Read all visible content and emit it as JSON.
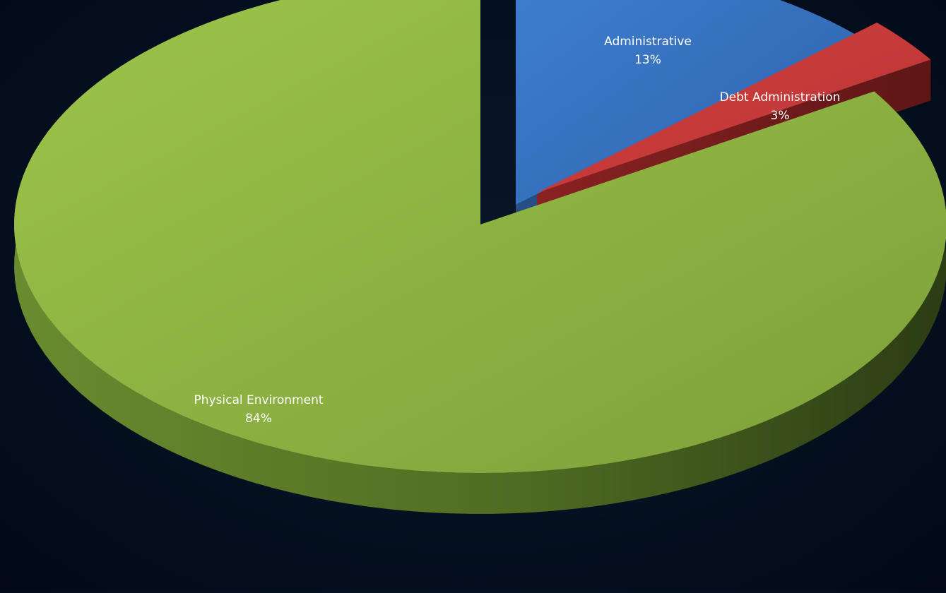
{
  "chart_data": {
    "type": "pie",
    "style": "3d-exploded",
    "legend": "none",
    "slices": [
      {
        "label": "Administrative",
        "value": 13,
        "value_label": "13%",
        "color": "#3b78c9"
      },
      {
        "label": "Debt Administration",
        "value": 3,
        "value_label": "3%",
        "color": "#cc3b3b"
      },
      {
        "label": "Physical Environment",
        "value": 84,
        "value_label": "84%",
        "color": "#8db542"
      }
    ]
  },
  "colors": {
    "background": "#051020"
  }
}
